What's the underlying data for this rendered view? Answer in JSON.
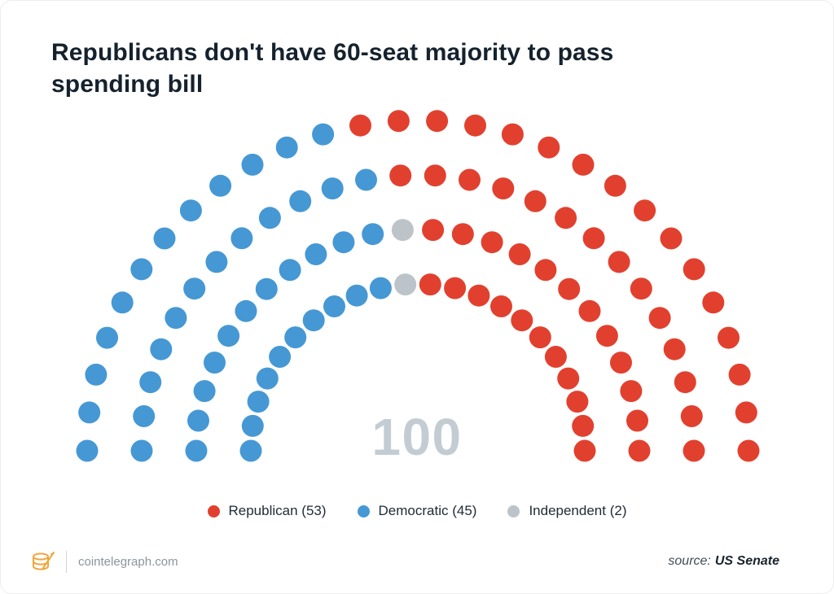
{
  "chart_data": {
    "type": "parliament",
    "title": "Republicans don't have 60-seat majority to pass spending bill",
    "title_lines": [
      "Republicans don't have 60-seat majority to pass",
      "spending bill"
    ],
    "total_seats": 100,
    "center_label": "100",
    "parties": [
      {
        "name": "Republican",
        "seats": 53,
        "color": "#E2402F",
        "legend_label": "Republican (53)"
      },
      {
        "name": "Democratic",
        "seats": 45,
        "color": "#4598D4",
        "legend_label": "Democratic (45)"
      },
      {
        "name": "Independent",
        "seats": 2,
        "color": "#BDC4C9",
        "legend_label": "Independent (2)"
      }
    ],
    "rows_inner_to_outer": [
      {
        "seats": 22,
        "fill": [
          [
            "Democratic",
            10
          ],
          [
            "Independent",
            1
          ],
          [
            "Republican",
            11
          ]
        ]
      },
      {
        "seats": 24,
        "fill": [
          [
            "Democratic",
            11
          ],
          [
            "Independent",
            1
          ],
          [
            "Republican",
            12
          ]
        ]
      },
      {
        "seats": 26,
        "fill": [
          [
            "Democratic",
            12
          ],
          [
            "Republican",
            14
          ]
        ]
      },
      {
        "seats": 28,
        "fill": [
          [
            "Democratic",
            12
          ],
          [
            "Republican",
            16
          ]
        ]
      }
    ],
    "legend_position": "bottom",
    "source_prefix": "source:",
    "source_name": "US Senate"
  },
  "footer": {
    "site": "cointelegraph.com",
    "logo": "cointelegraph-coin-logo"
  }
}
